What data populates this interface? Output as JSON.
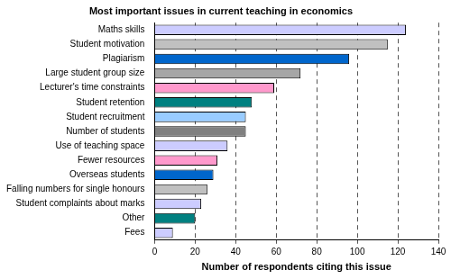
{
  "chart_data": {
    "type": "bar",
    "orientation": "horizontal",
    "title": "Most important issues in current teaching in economics",
    "x_label": "Number of respondents citing this issue",
    "categories": [
      "Maths skills",
      "Student motivation",
      "Plagiarism",
      "Large student group size",
      "Lecturer's time constraints",
      "Student retention",
      "Student recruitment",
      "Number of students",
      "Use of teaching space",
      "Fewer resources",
      "Overseas students",
      "Falling numbers for single honours",
      "Student complaints about marks",
      "Other",
      "Fees"
    ],
    "values": [
      124,
      115,
      96,
      72,
      59,
      48,
      45,
      45,
      36,
      31,
      29,
      26,
      23,
      20,
      9
    ],
    "colors": [
      "#ccccff",
      "#c0c0c0",
      "#0066cc",
      "#a6a6a6",
      "#ff99cc",
      "#008080",
      "#99ccff",
      "#808080",
      "#ccccff",
      "#ff99cc",
      "#0066cc",
      "#c0c0c0",
      "#ccccff",
      "#008080",
      "#ccccff"
    ],
    "xlim": [
      0,
      140
    ],
    "xticks": [
      0,
      20,
      40,
      60,
      80,
      100,
      120,
      140
    ],
    "grid": true
  }
}
